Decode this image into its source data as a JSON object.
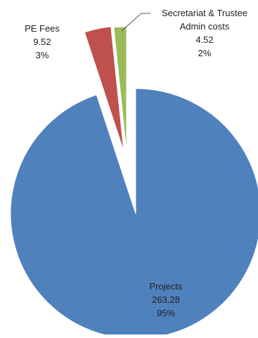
{
  "chart_data": {
    "type": "pie",
    "exploded": true,
    "start_angle_deg": 0,
    "direction": "clockwise",
    "slices": [
      {
        "label_lines": [
          "Projects",
          "263.28",
          "95%"
        ],
        "value": 263.28,
        "percent": 95,
        "color": "#4F81BD"
      },
      {
        "label_lines": [
          "PE Fees",
          "9.52",
          "3%"
        ],
        "value": 9.52,
        "percent": 3,
        "color": "#C0504D"
      },
      {
        "label_lines": [
          "Secretariat & Trustee",
          "Admin costs",
          "4.52",
          "2%"
        ],
        "value": 4.52,
        "percent": 2,
        "color": "#9BBB59"
      }
    ]
  }
}
